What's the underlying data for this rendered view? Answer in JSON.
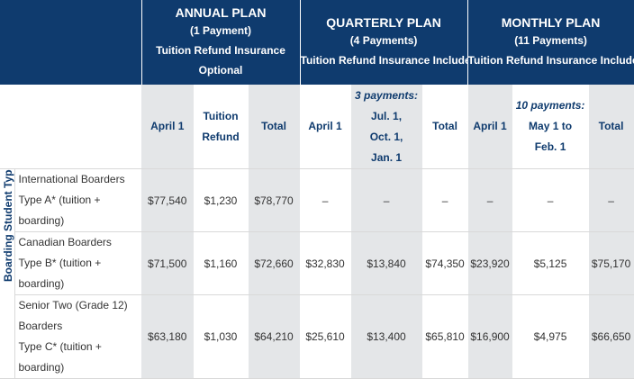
{
  "plans": {
    "annual": {
      "title": "ANNUAL PLAN",
      "payments": "(1 Payment)",
      "insurance_1": "Tuition Refund Insurance",
      "insurance_2": "Optional"
    },
    "quarterly": {
      "title": "QUARTERLY PLAN",
      "payments": "(4 Payments)",
      "insurance_1": "Tuition Refund Insurance Included"
    },
    "monthly": {
      "title": "MONTHLY PLAN",
      "payments": "(11 Payments)",
      "insurance_1": "Tuition Refund Insurance Included"
    }
  },
  "subheaders": {
    "annual_april": "April 1",
    "tuition_refund_1": "Tuition",
    "tuition_refund_2": "Refund",
    "annual_total": "Total",
    "quarterly_april": "April 1",
    "q_payments_title": "3 payments:",
    "q_payments_1": "Jul. 1,",
    "q_payments_2": "Oct. 1,",
    "q_payments_3": "Jan. 1",
    "quarterly_total": "Total",
    "monthly_april": "April 1",
    "m_payments_title": "10 payments:",
    "m_payments_1": "May 1 to",
    "m_payments_2": "Feb. 1",
    "monthly_total": "Total"
  },
  "side_label": "Boarding Student Type",
  "rows": [
    {
      "label_lines": [
        "International Boarders",
        "Type A* (tuition +",
        "boarding)"
      ],
      "values": [
        "$77,540",
        "$1,230",
        "$78,770",
        "–",
        "–",
        "–",
        "–",
        "–",
        "–"
      ]
    },
    {
      "label_lines": [
        "Canadian Boarders",
        "Type B* (tuition +",
        "boarding)"
      ],
      "values": [
        "$71,500",
        "$1,160",
        "$72,660",
        "$32,830",
        "$13,840",
        "$74,350",
        "$23,920",
        "$5,125",
        "$75,170"
      ]
    },
    {
      "label_lines": [
        "Senior Two (Grade 12)",
        "Boarders",
        "Type C* (tuition +",
        "boarding)"
      ],
      "values": [
        "$63,180",
        "$1,030",
        "$64,210",
        "$25,610",
        "$13,400",
        "$65,810",
        "$16,900",
        "$4,975",
        "$66,650"
      ]
    }
  ]
}
